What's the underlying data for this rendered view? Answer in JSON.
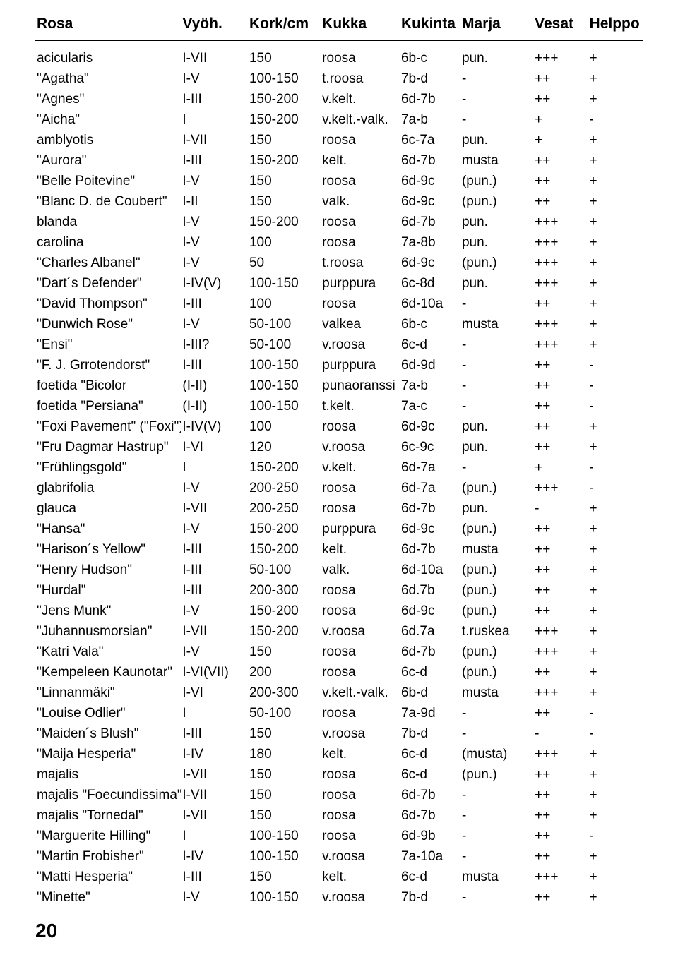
{
  "columns": [
    "Rosa",
    "Vyöh.",
    "Kork/cm",
    "Kukka",
    "Kukinta",
    "Marja",
    "Vesat",
    "Helppo"
  ],
  "rows": [
    [
      "acicularis",
      "I-VII",
      "150",
      "roosa",
      "6b-c",
      "pun.",
      "+++",
      "+"
    ],
    [
      "\"Agatha\"",
      "I-V",
      "100-150",
      "t.roosa",
      "7b-d",
      "-",
      "++",
      "+"
    ],
    [
      "\"Agnes\"",
      "I-III",
      "150-200",
      "v.kelt.",
      "6d-7b",
      "-",
      "++",
      "+"
    ],
    [
      "\"Aicha\"",
      "I",
      "150-200",
      "v.kelt.-valk.",
      "7a-b",
      "-",
      "+",
      "-"
    ],
    [
      "amblyotis",
      "I-VII",
      "150",
      "roosa",
      "6c-7a",
      "pun.",
      "+",
      "+"
    ],
    [
      "\"Aurora\"",
      "I-III",
      "150-200",
      "kelt.",
      "6d-7b",
      "musta",
      "++",
      "+"
    ],
    [
      "\"Belle Poitevine\"",
      "I-V",
      "150",
      "roosa",
      "6d-9c",
      "(pun.)",
      "++",
      "+"
    ],
    [
      "\"Blanc D. de Coubert\"",
      "I-II",
      "150",
      "valk.",
      "6d-9c",
      "(pun.)",
      "++",
      "+"
    ],
    [
      "blanda",
      "I-V",
      "150-200",
      "roosa",
      "6d-7b",
      "pun.",
      "+++",
      "+"
    ],
    [
      "carolina",
      "I-V",
      "100",
      "roosa",
      "7a-8b",
      "pun.",
      "+++",
      "+"
    ],
    [
      "\"Charles Albanel\"",
      "I-V",
      "50",
      "t.roosa",
      "6d-9c",
      "(pun.)",
      "+++",
      "+"
    ],
    [
      "\"Dart´s Defender\"",
      "I-IV(V)",
      "100-150",
      "purppura",
      "6c-8d",
      "pun.",
      "+++",
      "+"
    ],
    [
      "\"David Thompson\"",
      "I-III",
      "100",
      "roosa",
      "6d-10a",
      "-",
      "++",
      "+"
    ],
    [
      "\"Dunwich Rose\"",
      "I-V",
      "50-100",
      "valkea",
      "6b-c",
      "musta",
      "+++",
      "+"
    ],
    [
      "\"Ensi\"",
      "I-III?",
      "50-100",
      "v.roosa",
      "6c-d",
      "-",
      "+++",
      "+"
    ],
    [
      "\"F. J. Grrotendorst\"",
      "I-III",
      "100-150",
      "purppura",
      "6d-9d",
      "-",
      "++",
      "-"
    ],
    [
      "foetida \"Bicolor",
      "(I-II)",
      "100-150",
      "punaoranssi",
      "7a-b",
      "-",
      "++",
      "-"
    ],
    [
      "foetida \"Persiana\"",
      "(I-II)",
      "100-150",
      "t.kelt.",
      "7a-c",
      "-",
      "++",
      "-"
    ],
    [
      "\"Foxi Pavement\" (\"Foxi\")",
      "I-IV(V)",
      "100",
      "roosa",
      "6d-9c",
      "pun.",
      "++",
      "+"
    ],
    [
      "\"Fru Dagmar Hastrup\"",
      "I-VI",
      "120",
      "v.roosa",
      "6c-9c",
      "pun.",
      "++",
      "+"
    ],
    [
      "\"Frühlingsgold\"",
      "I",
      "150-200",
      "v.kelt.",
      "6d-7a",
      "-",
      "+",
      "-"
    ],
    [
      "glabrifolia",
      "I-V",
      "200-250",
      "roosa",
      "6d-7a",
      "(pun.)",
      "+++",
      "-"
    ],
    [
      "glauca",
      "I-VII",
      "200-250",
      "roosa",
      "6d-7b",
      "pun.",
      "-",
      "+"
    ],
    [
      "\"Hansa\"",
      "I-V",
      "150-200",
      "purppura",
      "6d-9c",
      "(pun.)",
      "++",
      "+"
    ],
    [
      "\"Harison´s Yellow\"",
      "I-III",
      "150-200",
      "kelt.",
      "6d-7b",
      "musta",
      "++",
      "+"
    ],
    [
      "\"Henry Hudson\"",
      "I-III",
      "50-100",
      "valk.",
      "6d-10a",
      "(pun.)",
      "++",
      "+"
    ],
    [
      "\"Hurdal\"",
      "I-III",
      "200-300",
      "roosa",
      "6d.7b",
      "(pun.)",
      "++",
      "+"
    ],
    [
      "\"Jens Munk\"",
      "I-V",
      "150-200",
      "roosa",
      "6d-9c",
      "(pun.)",
      "++",
      "+"
    ],
    [
      "\"Juhannusmorsian\"",
      "I-VII",
      "150-200",
      "v.roosa",
      "6d.7a",
      "t.ruskea",
      "+++",
      "+"
    ],
    [
      "\"Katri Vala\"",
      "I-V",
      "150",
      "roosa",
      "6d-7b",
      "(pun.)",
      "+++",
      "+"
    ],
    [
      "\"Kempeleen Kaunotar\"",
      "I-VI(VII)",
      "200",
      "roosa",
      "6c-d",
      "(pun.)",
      "++",
      "+"
    ],
    [
      "\"Linnanmäki\"",
      "I-VI",
      "200-300",
      "v.kelt.-valk.",
      "6b-d",
      "musta",
      "+++",
      "+"
    ],
    [
      "\"Louise Odlier\"",
      "I",
      "50-100",
      "roosa",
      "7a-9d",
      "-",
      "++",
      "-"
    ],
    [
      "\"Maiden´s Blush\"",
      "I-III",
      "150",
      "v.roosa",
      "7b-d",
      "-",
      "-",
      "-"
    ],
    [
      "\"Maija Hesperia\"",
      "I-IV",
      "180",
      "kelt.",
      "6c-d",
      "(musta)",
      "+++",
      "+"
    ],
    [
      "majalis",
      "I-VII",
      "150",
      "roosa",
      "6c-d",
      "(pun.)",
      "++",
      "+"
    ],
    [
      "majalis \"Foecundissima\"",
      "I-VII",
      "150",
      "roosa",
      "6d-7b",
      "-",
      "++",
      "+"
    ],
    [
      "majalis \"Tornedal\"",
      "I-VII",
      "150",
      "roosa",
      "6d-7b",
      "-",
      "++",
      "+"
    ],
    [
      "\"Marguerite Hilling\"",
      "I",
      "100-150",
      "roosa",
      "6d-9b",
      "-",
      "++",
      "-"
    ],
    [
      "\"Martin Frobisher\"",
      "I-IV",
      "100-150",
      "v.roosa",
      "7a-10a",
      "-",
      "++",
      "+"
    ],
    [
      "\"Matti Hesperia\"",
      "I-III",
      "150",
      "kelt.",
      "6c-d",
      "musta",
      "+++",
      "+"
    ],
    [
      "\"Minette\"",
      "I-V",
      "100-150",
      "v.roosa",
      "7b-d",
      "-",
      "++",
      "+"
    ]
  ],
  "pageNumber": "20"
}
